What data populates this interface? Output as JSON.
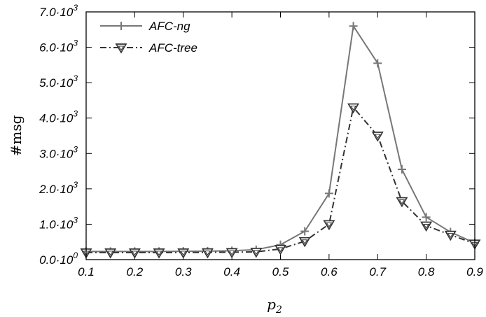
{
  "chart_data": {
    "type": "line",
    "xlabel": "p",
    "xlabel_sub": "2",
    "ylabel": "#msg",
    "xlim": [
      0.1,
      0.9
    ],
    "ylim": [
      0,
      7000
    ],
    "x_ticks": [
      0.1,
      0.2,
      0.3,
      0.4,
      0.5,
      0.6,
      0.7,
      0.8,
      0.9
    ],
    "x_tick_labels": [
      "0.1",
      "0.2",
      "0.3",
      "0.4",
      "0.5",
      "0.6",
      "0.7",
      "0.8",
      "0.9"
    ],
    "y_ticks": [
      {
        "value": 0,
        "mant": "0.0",
        "exp": "0"
      },
      {
        "value": 1000,
        "mant": "1.0",
        "exp": "3"
      },
      {
        "value": 2000,
        "mant": "2.0",
        "exp": "3"
      },
      {
        "value": 3000,
        "mant": "3.0",
        "exp": "3"
      },
      {
        "value": 4000,
        "mant": "4.0",
        "exp": "3"
      },
      {
        "value": 5000,
        "mant": "5.0",
        "exp": "3"
      },
      {
        "value": 6000,
        "mant": "6.0",
        "exp": "3"
      },
      {
        "value": 7000,
        "mant": "7.0",
        "exp": "3"
      }
    ],
    "y_mult": "·10",
    "grid": false,
    "legend_position": "top-left",
    "x": [
      0.1,
      0.15,
      0.2,
      0.25,
      0.3,
      0.35,
      0.4,
      0.45,
      0.5,
      0.55,
      0.6,
      0.65,
      0.7,
      0.75,
      0.8,
      0.85,
      0.9
    ],
    "series": [
      {
        "name": "AFC-ng",
        "color": "#777777",
        "marker": "plus",
        "dash": "solid",
        "values": [
          230,
          230,
          230,
          230,
          235,
          240,
          250,
          280,
          420,
          800,
          1870,
          6600,
          5550,
          2550,
          1200,
          780,
          470
        ]
      },
      {
        "name": "AFC-tree",
        "color": "#333333",
        "marker": "triangle-down",
        "dash": "dashdot",
        "values": [
          200,
          200,
          200,
          200,
          200,
          205,
          210,
          220,
          300,
          520,
          1000,
          4300,
          3500,
          1650,
          960,
          700,
          450
        ]
      }
    ]
  }
}
